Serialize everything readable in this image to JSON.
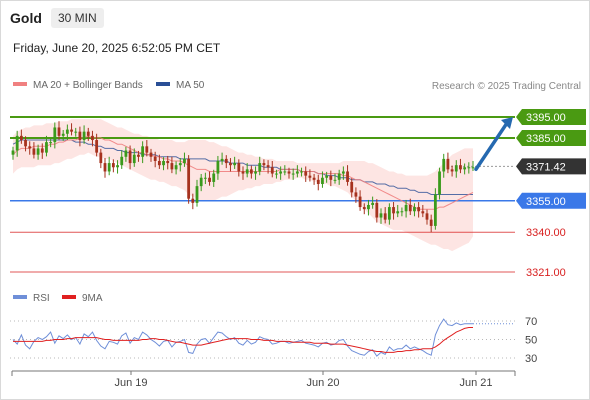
{
  "header": {
    "title": "Gold",
    "timeframe": "30 MIN",
    "datetime": "Friday, June 20, 2025 6:52:05 PM CET"
  },
  "legend": {
    "bollinger_label": "MA 20 + Bollinger Bands",
    "ma50_label": "MA 50",
    "rsi_label": "RSI",
    "rsi_ma_label": "9MA",
    "bollinger_color": "#f08080",
    "ma50_color": "#2a4f96",
    "rsi_color": "#6f8fd8",
    "rsi_ma_color": "#e02020"
  },
  "credit": "Research © 2025 Trading Central",
  "colors": {
    "up": "#3a9a1c",
    "down": "#a6321e",
    "resistance": "#4a9a12",
    "current": "#333333",
    "pivot": "#3a78e8",
    "support": "#d81f1f",
    "arrow": "#2569b0",
    "band_fill": "#fde0de"
  },
  "chart_data": [
    {
      "type": "candlestick",
      "title": "Gold",
      "timeframe": "30 MIN",
      "x_tick_labels": [
        "Jun 19",
        "Jun 20",
        "Jun 21"
      ],
      "price_range": [
        3313,
        3402
      ],
      "levels": [
        {
          "price": 3395.0,
          "label": "3395.00",
          "kind": "resistance"
        },
        {
          "price": 3385.0,
          "label": "3385.00",
          "kind": "resistance"
        },
        {
          "price": 3371.42,
          "label": "3371.42",
          "kind": "current"
        },
        {
          "price": 3355.0,
          "label": "3355.00",
          "kind": "pivot"
        },
        {
          "price": 3340.0,
          "label": "3340.00",
          "kind": "support"
        },
        {
          "price": 3321.0,
          "label": "3321.00",
          "kind": "support"
        }
      ],
      "forecast_arrow": {
        "from_price": 3371,
        "to_price": 3395,
        "direction": "up"
      },
      "closes": [
        3379,
        3386,
        3384,
        3381,
        3380,
        3377,
        3380,
        3378,
        3383,
        3383,
        3390,
        3386,
        3387,
        3389,
        3388,
        3388,
        3384,
        3388,
        3386,
        3384,
        3378,
        3373,
        3369,
        3373,
        3371,
        3372,
        3376,
        3379,
        3373,
        3377,
        3376,
        3381,
        3378,
        3376,
        3374,
        3372,
        3374,
        3373,
        3370,
        3372,
        3373,
        3375,
        3356,
        3354,
        3362,
        3366,
        3366,
        3364,
        3368,
        3374,
        3375,
        3373,
        3372,
        3373,
        3369,
        3368,
        3370,
        3368,
        3369,
        3373,
        3372,
        3371,
        3368,
        3368,
        3369,
        3369,
        3368,
        3368,
        3369,
        3369,
        3367,
        3366,
        3365,
        3363,
        3366,
        3367,
        3365,
        3365,
        3368,
        3369,
        3364,
        3359,
        3357,
        3352,
        3351,
        3353,
        3354,
        3347,
        3349,
        3346,
        3352,
        3349,
        3350,
        3350,
        3353,
        3350,
        3352,
        3350,
        3349,
        3346,
        3343,
        3358,
        3369,
        3375,
        3370,
        3369,
        3372,
        3370,
        3371,
        3371,
        3371
      ],
      "ma20": [
        3377,
        3379,
        3380,
        3380,
        3380,
        3381,
        3381,
        3381,
        3381,
        3382,
        3382,
        3383,
        3383,
        3384,
        3384,
        3384,
        3385,
        3385,
        3386,
        3385,
        3385,
        3385,
        3384,
        3384,
        3383,
        3382,
        3382,
        3381,
        3380,
        3379,
        3378,
        3378,
        3377,
        3377,
        3376,
        3376,
        3375,
        3375,
        3374,
        3374,
        3374,
        3373,
        3372,
        3371,
        3370,
        3370,
        3370,
        3369,
        3369,
        3369,
        3369,
        3369,
        3369,
        3369,
        3369,
        3369,
        3369,
        3369,
        3369,
        3369,
        3369,
        3369,
        3369,
        3369,
        3370,
        3370,
        3370,
        3370,
        3370,
        3369,
        3369,
        3369,
        3369,
        3368,
        3368,
        3368,
        3368,
        3368,
        3368,
        3367,
        3367,
        3366,
        3365,
        3365,
        3364,
        3363,
        3362,
        3361,
        3360,
        3359,
        3358,
        3357,
        3356,
        3355,
        3354,
        3353,
        3352,
        3351,
        3351,
        3351,
        3351,
        3351,
        3352,
        3352,
        3353,
        3354,
        3355,
        3356,
        3357,
        3358,
        3359
      ],
      "bollinger_upper": [
        3386,
        3388,
        3389,
        3390,
        3390,
        3391,
        3391,
        3391,
        3392,
        3392,
        3392,
        3393,
        3393,
        3393,
        3394,
        3394,
        3394,
        3394,
        3394,
        3394,
        3394,
        3394,
        3393,
        3392,
        3391,
        3390,
        3390,
        3389,
        3388,
        3387,
        3387,
        3386,
        3386,
        3385,
        3385,
        3384,
        3384,
        3384,
        3384,
        3383,
        3383,
        3383,
        3384,
        3384,
        3384,
        3384,
        3384,
        3383,
        3383,
        3382,
        3381,
        3381,
        3380,
        3379,
        3378,
        3378,
        3377,
        3377,
        3376,
        3376,
        3375,
        3375,
        3375,
        3374,
        3374,
        3374,
        3374,
        3374,
        3373,
        3373,
        3373,
        3373,
        3373,
        3373,
        3373,
        3373,
        3373,
        3373,
        3373,
        3374,
        3374,
        3374,
        3374,
        3374,
        3374,
        3373,
        3373,
        3372,
        3371,
        3370,
        3369,
        3369,
        3368,
        3368,
        3367,
        3367,
        3367,
        3367,
        3367,
        3367,
        3368,
        3369,
        3371,
        3373,
        3375,
        3377,
        3378,
        3379,
        3380,
        3380,
        3380
      ],
      "bollinger_lower": [
        3368,
        3370,
        3371,
        3371,
        3371,
        3371,
        3372,
        3372,
        3372,
        3372,
        3373,
        3373,
        3374,
        3375,
        3375,
        3376,
        3377,
        3377,
        3378,
        3377,
        3376,
        3376,
        3375,
        3375,
        3374,
        3373,
        3372,
        3371,
        3370,
        3369,
        3368,
        3367,
        3366,
        3365,
        3365,
        3364,
        3364,
        3363,
        3362,
        3362,
        3361,
        3360,
        3358,
        3357,
        3356,
        3355,
        3355,
        3355,
        3355,
        3356,
        3357,
        3357,
        3358,
        3359,
        3360,
        3360,
        3361,
        3361,
        3362,
        3362,
        3363,
        3363,
        3363,
        3364,
        3364,
        3365,
        3365,
        3365,
        3366,
        3366,
        3365,
        3365,
        3364,
        3364,
        3363,
        3363,
        3362,
        3362,
        3361,
        3360,
        3359,
        3357,
        3355,
        3353,
        3351,
        3349,
        3347,
        3345,
        3344,
        3343,
        3342,
        3341,
        3341,
        3341,
        3340,
        3339,
        3338,
        3337,
        3336,
        3335,
        3334,
        3334,
        3333,
        3332,
        3332,
        3331,
        3332,
        3333,
        3334,
        3335,
        3338
      ],
      "ma50": [
        3382,
        3383,
        3384,
        3384,
        3384,
        3384,
        3384,
        3384,
        3384,
        3384,
        3384,
        3384,
        3384,
        3384,
        3384,
        3383,
        3383,
        3383,
        3382,
        3382,
        3381,
        3381,
        3380,
        3380,
        3380,
        3379,
        3379,
        3378,
        3378,
        3378,
        3378,
        3377,
        3377,
        3377,
        3377,
        3376,
        3376,
        3376,
        3376,
        3376,
        3375,
        3375,
        3375,
        3375,
        3375,
        3375,
        3375,
        3374,
        3374,
        3374,
        3374,
        3374,
        3373,
        3373,
        3373,
        3373,
        3372,
        3372,
        3372,
        3372,
        3371,
        3371,
        3371,
        3371,
        3370,
        3370,
        3370,
        3370,
        3370,
        3369,
        3369,
        3369,
        3369,
        3368,
        3368,
        3367,
        3367,
        3367,
        3366,
        3366,
        3366,
        3365,
        3365,
        3365,
        3364,
        3364,
        3364,
        3363,
        3363,
        3363,
        3362,
        3362,
        3361,
        3361,
        3361,
        3360,
        3360,
        3359,
        3359,
        3359,
        3358,
        3358,
        3358,
        3358,
        3358,
        3358,
        3358,
        3358,
        3358,
        3358,
        3358
      ],
      "current_price": 3371.42
    },
    {
      "type": "line",
      "title": "RSI",
      "y_ticks": [
        70,
        50,
        30
      ],
      "ylim": [
        20,
        80
      ],
      "series": [
        {
          "name": "RSI",
          "values": [
            50,
            45,
            55,
            44,
            40,
            48,
            52,
            50,
            53,
            58,
            46,
            54,
            51,
            55,
            50,
            52,
            45,
            56,
            53,
            58,
            49,
            43,
            40,
            48,
            47,
            45,
            54,
            57,
            46,
            52,
            50,
            58,
            55,
            50,
            47,
            43,
            48,
            49,
            42,
            47,
            48,
            50,
            36,
            35,
            45,
            50,
            51,
            46,
            52,
            58,
            57,
            53,
            50,
            52,
            46,
            44,
            49,
            45,
            47,
            53,
            51,
            50,
            45,
            46,
            48,
            48,
            46,
            47,
            48,
            49,
            46,
            45,
            44,
            42,
            46,
            47,
            44,
            45,
            49,
            50,
            43,
            38,
            36,
            34,
            33,
            37,
            39,
            32,
            36,
            34,
            42,
            38,
            40,
            40,
            44,
            40,
            42,
            40,
            38,
            35,
            33,
            55,
            65,
            72,
            66,
            65,
            68,
            66,
            67,
            67,
            67
          ]
        },
        {
          "name": "9MA",
          "values": [
            48,
            48,
            48,
            48,
            48,
            48,
            48,
            48,
            49,
            49,
            50,
            50,
            50,
            51,
            51,
            52,
            52,
            52,
            52,
            52,
            52,
            51,
            50,
            50,
            49,
            49,
            49,
            49,
            49,
            49,
            49,
            50,
            50,
            51,
            51,
            50,
            50,
            49,
            48,
            47,
            47,
            46,
            45,
            44,
            44,
            44,
            45,
            46,
            47,
            48,
            49,
            50,
            51,
            51,
            51,
            51,
            51,
            50,
            50,
            50,
            49,
            49,
            49,
            48,
            48,
            48,
            48,
            47,
            47,
            47,
            47,
            47,
            46,
            46,
            46,
            46,
            45,
            45,
            45,
            45,
            44,
            43,
            42,
            41,
            40,
            39,
            38,
            37,
            37,
            36,
            36,
            36,
            37,
            37,
            38,
            38,
            39,
            39,
            40,
            40,
            40,
            42,
            45,
            49,
            52,
            55,
            58,
            60,
            62,
            63,
            63
          ]
        }
      ]
    }
  ]
}
